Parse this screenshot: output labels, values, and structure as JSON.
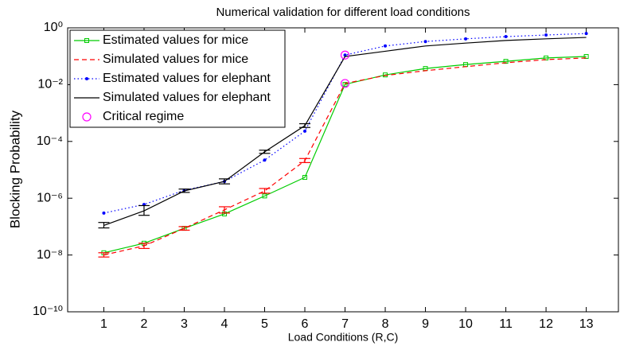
{
  "chart_data": {
    "type": "line",
    "title": "Numerical validation for different load conditions",
    "xlabel": "Load Conditions (R,C)",
    "ylabel": "Blocking Probability",
    "x": [
      1,
      2,
      3,
      4,
      5,
      6,
      7,
      8,
      9,
      10,
      11,
      12,
      13
    ],
    "xlim": [
      0.1,
      13.8
    ],
    "xticks": [
      1,
      2,
      3,
      4,
      5,
      6,
      7,
      8,
      9,
      10,
      11,
      12,
      13
    ],
    "ylim": [
      1e-10,
      1
    ],
    "yscale": "log",
    "yticks": [
      {
        "value": 1e-10,
        "label": "10⁻¹⁰"
      },
      {
        "value": 1e-08,
        "label": "10⁻⁸"
      },
      {
        "value": 1e-06,
        "label": "10⁻⁶"
      },
      {
        "value": 0.0001,
        "label": "10⁻⁴"
      },
      {
        "value": 0.01,
        "label": "10⁻²"
      },
      {
        "value": 1,
        "label": "10⁰"
      }
    ],
    "legend": "upper left",
    "series": [
      {
        "name": "Estimated values for mice",
        "color": "#00cc00",
        "dash": "solid",
        "marker": "square",
        "values": [
          1.2e-08,
          2.6e-08,
          8.7e-08,
          2.8e-07,
          1.2e-06,
          5.4e-06,
          0.0102,
          0.022,
          0.037,
          0.051,
          0.066,
          0.087,
          0.098
        ]
      },
      {
        "name": "Simulated values for mice",
        "color": "#ff0000",
        "dash": "dashed",
        "marker": "none",
        "values": [
          1e-08,
          2.1e-08,
          8.7e-08,
          3.9e-07,
          1.8e-06,
          2.1e-05,
          0.011,
          0.021,
          0.031,
          0.043,
          0.059,
          0.076,
          0.087
        ],
        "error_low": [
          8.5e-09,
          1.7e-08,
          7.5e-08,
          3e-07,
          1.5e-06,
          1.8e-05,
          null,
          null,
          null,
          null,
          null,
          null,
          null
        ],
        "error_high": [
          1.2e-08,
          2.6e-08,
          1e-07,
          5e-07,
          2.2e-06,
          2.5e-05,
          null,
          null,
          null,
          null,
          null,
          null,
          null
        ]
      },
      {
        "name": "Estimated values for elephant",
        "color": "#0000ff",
        "dash": "dotted",
        "marker": "dot",
        "values": [
          3e-07,
          6e-07,
          1.9e-06,
          3.9e-06,
          2.2e-05,
          0.00023,
          0.11,
          0.23,
          0.33,
          0.41,
          0.49,
          0.56,
          0.63
        ]
      },
      {
        "name": "Simulated values for elephant",
        "color": "#000000",
        "dash": "solid",
        "marker": "none",
        "values": [
          1.1e-07,
          3.6e-07,
          1.8e-06,
          3.9e-06,
          4.3e-05,
          0.00036,
          0.098,
          0.15,
          0.23,
          0.29,
          0.36,
          0.41,
          0.46
        ],
        "error_low": [
          9e-08,
          2.5e-07,
          1.6e-06,
          3.2e-06,
          3.8e-05,
          0.00031,
          null,
          null,
          null,
          null,
          null,
          null,
          null
        ],
        "error_high": [
          1.4e-07,
          5.5e-07,
          2.1e-06,
          4.8e-06,
          4.9e-05,
          0.00042,
          null,
          null,
          null,
          null,
          null,
          null,
          null
        ]
      },
      {
        "name": "Critical regime",
        "color": "#ff00ff",
        "dash": "none",
        "marker": "circle",
        "values": [
          null,
          null,
          null,
          null,
          null,
          null,
          [
            0.011,
            0.11
          ],
          null,
          null,
          null,
          null,
          null,
          null
        ]
      }
    ]
  }
}
